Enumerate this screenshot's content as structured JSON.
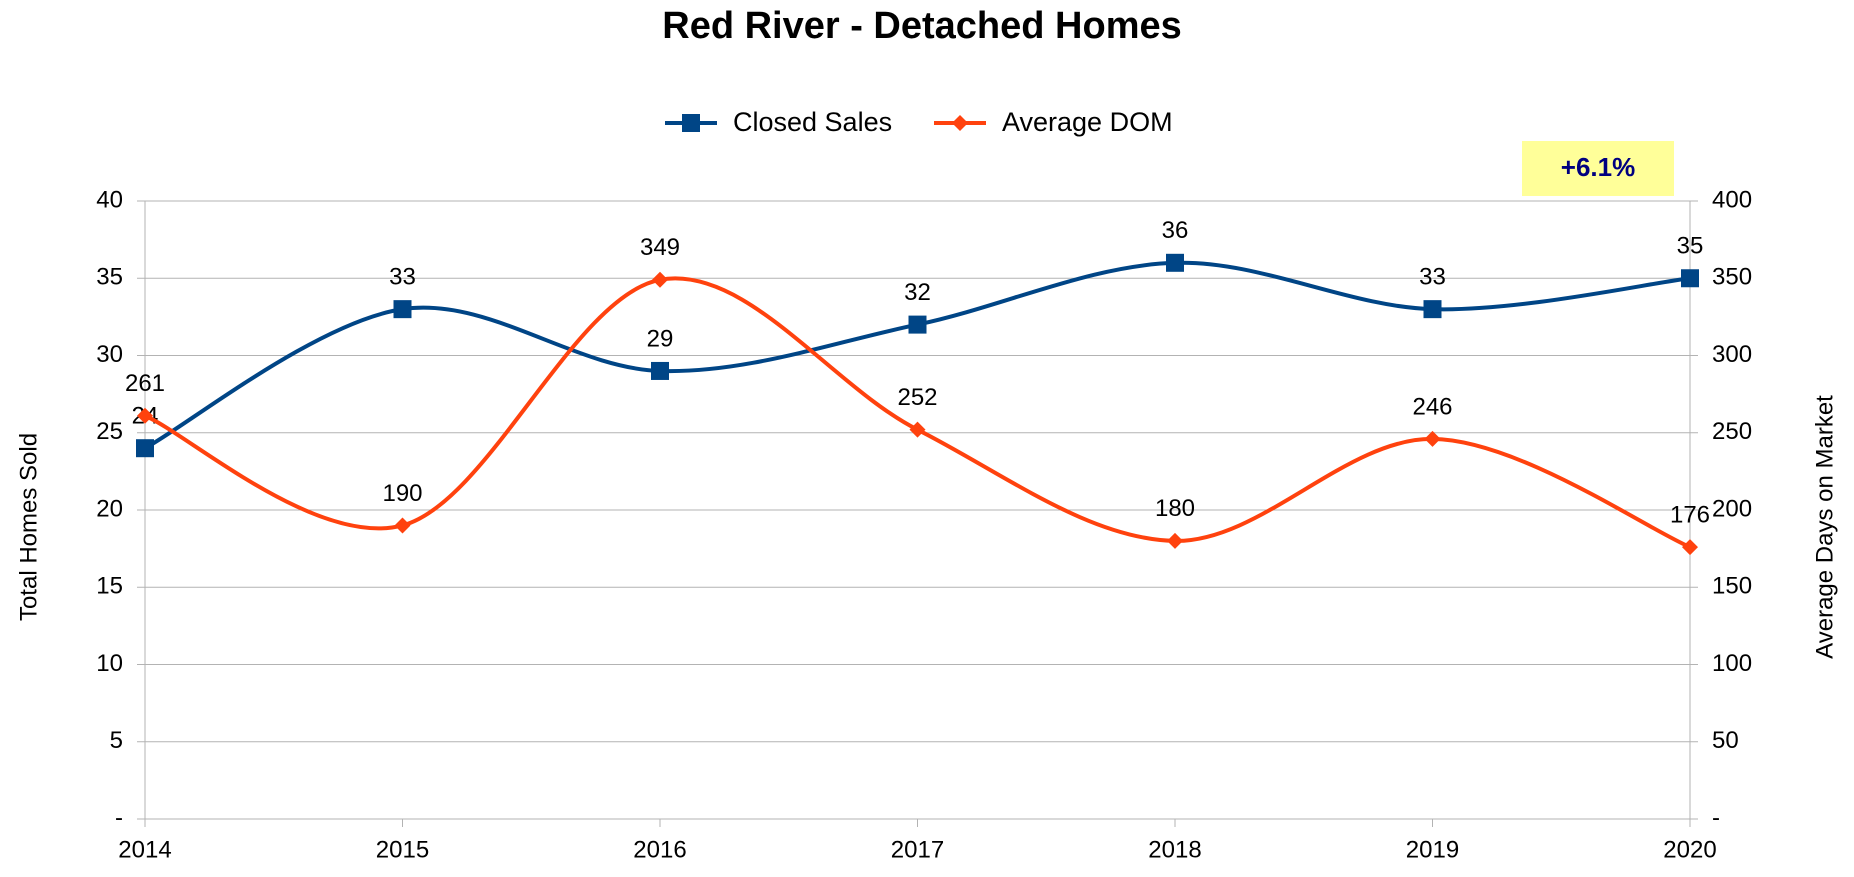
{
  "chart_data": {
    "type": "line",
    "title": "Red River - Detached Homes",
    "annotation": "+6.1%",
    "y_label": "Total Homes Sold",
    "y2_label": "Average Days on Market",
    "categories": [
      "2014",
      "2015",
      "2016",
      "2017",
      "2018",
      "2019",
      "2020"
    ],
    "series": [
      {
        "name": "Closed Sales",
        "color": "#004586",
        "marker": "square",
        "values": [
          24,
          33,
          29,
          32,
          36,
          33,
          35
        ]
      },
      {
        "name": "Average DOM",
        "color": "#ff420e",
        "marker": "diamond",
        "axis": "y2",
        "values": [
          261,
          190,
          349,
          252,
          180,
          246,
          176
        ]
      }
    ],
    "ylim": [
      0,
      40
    ],
    "yticks": [
      {
        "value": 0,
        "label": "-"
      },
      5,
      10,
      15,
      20,
      25,
      30,
      35,
      40
    ],
    "y2lim": [
      0,
      400
    ],
    "y2ticks": [
      {
        "value": 0,
        "label": "-"
      },
      50,
      100,
      150,
      200,
      250,
      300,
      350,
      400
    ],
    "grid": true,
    "legend": "top",
    "smooth": true
  }
}
